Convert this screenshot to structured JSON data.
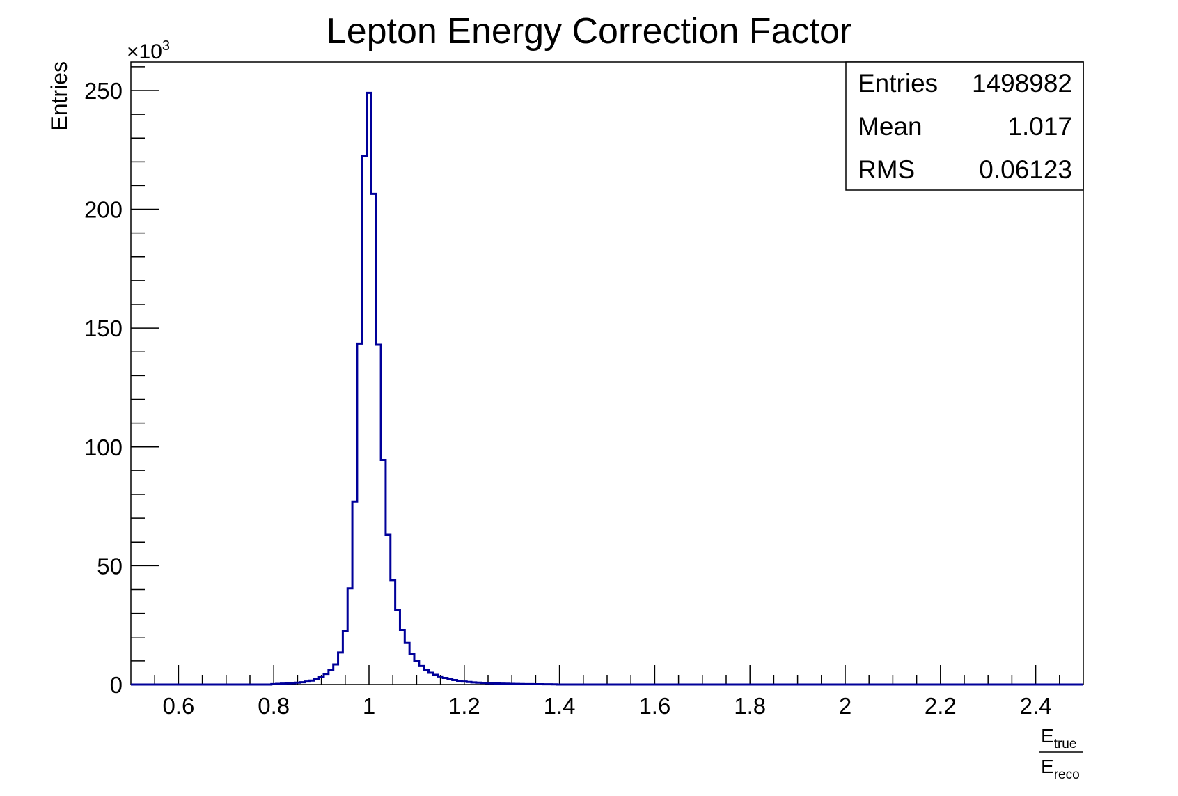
{
  "chart_data": {
    "type": "histogram",
    "title": "Lepton Energy Correction Factor",
    "ylabel": "Entries",
    "y_multiplier": "×10",
    "y_multiplier_exp": "3",
    "xlabel": {
      "numerator_base": "E",
      "numerator_sub": "true",
      "denominator_base": "E",
      "denominator_sub": "reco"
    },
    "xlim": [
      0.5,
      2.5
    ],
    "ylim": [
      0,
      262
    ],
    "x_ticks": [
      0.6,
      0.8,
      1.0,
      1.2,
      1.4,
      1.6,
      1.8,
      2.0,
      2.2,
      2.4
    ],
    "x_tick_labels": [
      "0.6",
      "0.8",
      "1",
      "1.2",
      "1.4",
      "1.6",
      "1.8",
      "2",
      "2.2",
      "2.4"
    ],
    "y_ticks": [
      0,
      50,
      100,
      150,
      200,
      250
    ],
    "y_tick_labels": [
      "0",
      "50",
      "100",
      "150",
      "200",
      "250"
    ],
    "line_color": "#000099",
    "bin_width": 0.01,
    "bins": [
      {
        "x": 0.8,
        "y": 0.2
      },
      {
        "x": 0.81,
        "y": 0.3
      },
      {
        "x": 0.82,
        "y": 0.4
      },
      {
        "x": 0.83,
        "y": 0.5
      },
      {
        "x": 0.84,
        "y": 0.6
      },
      {
        "x": 0.85,
        "y": 0.8
      },
      {
        "x": 0.86,
        "y": 1.0
      },
      {
        "x": 0.87,
        "y": 1.3
      },
      {
        "x": 0.88,
        "y": 1.7
      },
      {
        "x": 0.89,
        "y": 2.3
      },
      {
        "x": 0.9,
        "y": 3.2
      },
      {
        "x": 0.91,
        "y": 4.5
      },
      {
        "x": 0.92,
        "y": 6.0
      },
      {
        "x": 0.93,
        "y": 8.5
      },
      {
        "x": 0.94,
        "y": 13.5
      },
      {
        "x": 0.95,
        "y": 22.5
      },
      {
        "x": 0.96,
        "y": 40.5
      },
      {
        "x": 0.97,
        "y": 77.0
      },
      {
        "x": 0.98,
        "y": 143.5
      },
      {
        "x": 0.99,
        "y": 222.5
      },
      {
        "x": 1.0,
        "y": 249.0
      },
      {
        "x": 1.01,
        "y": 206.5
      },
      {
        "x": 1.02,
        "y": 143.0
      },
      {
        "x": 1.03,
        "y": 94.5
      },
      {
        "x": 1.04,
        "y": 63.0
      },
      {
        "x": 1.05,
        "y": 44.0
      },
      {
        "x": 1.06,
        "y": 31.5
      },
      {
        "x": 1.07,
        "y": 23.0
      },
      {
        "x": 1.08,
        "y": 17.5
      },
      {
        "x": 1.09,
        "y": 13.0
      },
      {
        "x": 1.1,
        "y": 10.0
      },
      {
        "x": 1.11,
        "y": 7.8
      },
      {
        "x": 1.12,
        "y": 6.2
      },
      {
        "x": 1.13,
        "y": 5.0
      },
      {
        "x": 1.14,
        "y": 4.1
      },
      {
        "x": 1.15,
        "y": 3.4
      },
      {
        "x": 1.16,
        "y": 2.8
      },
      {
        "x": 1.17,
        "y": 2.3
      },
      {
        "x": 1.18,
        "y": 1.9
      },
      {
        "x": 1.19,
        "y": 1.6
      },
      {
        "x": 1.2,
        "y": 1.3
      },
      {
        "x": 1.21,
        "y": 1.1
      },
      {
        "x": 1.22,
        "y": 0.9
      },
      {
        "x": 1.23,
        "y": 0.8
      },
      {
        "x": 1.24,
        "y": 0.7
      },
      {
        "x": 1.25,
        "y": 0.6
      },
      {
        "x": 1.26,
        "y": 0.5
      },
      {
        "x": 1.27,
        "y": 0.45
      },
      {
        "x": 1.28,
        "y": 0.4
      },
      {
        "x": 1.29,
        "y": 0.35
      },
      {
        "x": 1.3,
        "y": 0.3
      },
      {
        "x": 1.31,
        "y": 0.25
      },
      {
        "x": 1.32,
        "y": 0.22
      },
      {
        "x": 1.33,
        "y": 0.2
      },
      {
        "x": 1.34,
        "y": 0.18
      },
      {
        "x": 1.35,
        "y": 0.16
      },
      {
        "x": 1.36,
        "y": 0.14
      },
      {
        "x": 1.37,
        "y": 0.12
      },
      {
        "x": 1.38,
        "y": 0.1
      },
      {
        "x": 1.39,
        "y": 0.09
      }
    ],
    "stats": {
      "rows": [
        {
          "label": "Entries",
          "value": "1498982"
        },
        {
          "label": "Mean",
          "value": "1.017"
        },
        {
          "label": "RMS",
          "value": "0.06123"
        }
      ]
    },
    "grid": false,
    "legend": "none"
  }
}
